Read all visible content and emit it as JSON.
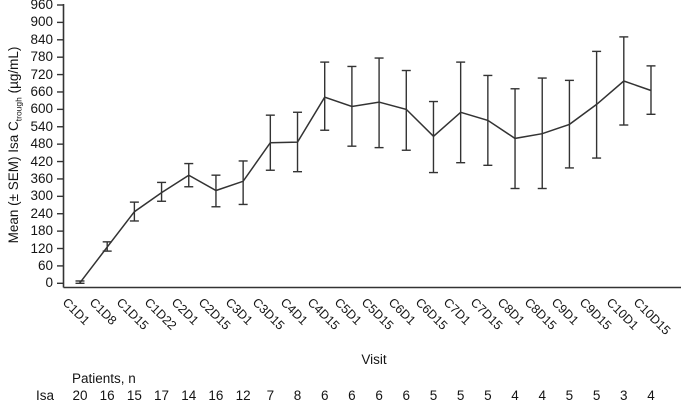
{
  "chart_data": {
    "type": "line",
    "title": "",
    "xlabel": "Visit",
    "ylabel": {
      "main": "Mean (± SEM) Isa C",
      "sub": "trough",
      "unit": " (µg/mL)"
    },
    "ylim": [
      0,
      960
    ],
    "ytick_step": 60,
    "yticks": [
      0,
      60,
      120,
      180,
      240,
      300,
      360,
      420,
      480,
      540,
      600,
      660,
      720,
      780,
      840,
      900,
      960
    ],
    "grid": false,
    "legend": "none",
    "categories": [
      "C1D1",
      "C1D8",
      "C1D15",
      "C1D22",
      "C2D1",
      "C2D15",
      "C3D1",
      "C3D15",
      "C4D1",
      "C4D15",
      "C5D1",
      "C5D15",
      "C6D1",
      "C6D15",
      "C7D1",
      "C7D15",
      "C8D1",
      "C8D15",
      "C9D1",
      "C9D15",
      "C10D1",
      "C10D15"
    ],
    "series": [
      {
        "name": "Isa",
        "mean": [
          2,
          125,
          247,
          313,
          373,
          320,
          352,
          485,
          487,
          642,
          610,
          625,
          600,
          507,
          590,
          562,
          500,
          516,
          548,
          617,
          698,
          665
        ],
        "upper": [
          8,
          143,
          280,
          348,
          413,
          373,
          422,
          580,
          590,
          763,
          748,
          777,
          734,
          627,
          763,
          717,
          671,
          708,
          700,
          800,
          850,
          750
        ],
        "lower": [
          0,
          111,
          215,
          283,
          333,
          264,
          272,
          390,
          385,
          528,
          473,
          468,
          459,
          382,
          416,
          407,
          327,
          327,
          398,
          432,
          546,
          583
        ]
      }
    ],
    "patients_row": {
      "header": "Patients, n",
      "row_label": "Isa",
      "values": [
        20,
        16,
        15,
        17,
        14,
        16,
        12,
        7,
        8,
        6,
        6,
        6,
        6,
        5,
        5,
        5,
        4,
        4,
        5,
        5,
        3,
        4
      ]
    },
    "colors": {
      "line": "#333333",
      "axis": "#333333",
      "text": "#141414"
    }
  }
}
